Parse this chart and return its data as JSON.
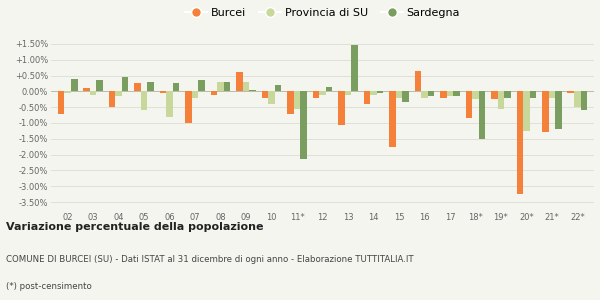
{
  "categories": [
    "02",
    "03",
    "04",
    "05",
    "06",
    "07",
    "08",
    "09",
    "10",
    "11*",
    "12",
    "13",
    "14",
    "15",
    "16",
    "17",
    "18*",
    "19*",
    "20*",
    "21*",
    "22*"
  ],
  "burcei": [
    -0.7,
    0.1,
    -0.5,
    0.25,
    -0.05,
    -1.0,
    -0.1,
    0.6,
    -0.2,
    -0.7,
    -0.2,
    -1.05,
    -0.4,
    -1.75,
    0.65,
    -0.2,
    -0.85,
    -0.25,
    -3.25,
    -1.3,
    -0.05
  ],
  "provincia_su": [
    -0.05,
    -0.1,
    -0.15,
    -0.6,
    -0.8,
    -0.2,
    0.3,
    0.3,
    -0.4,
    -0.55,
    -0.1,
    -0.1,
    -0.1,
    -0.2,
    -0.2,
    -0.15,
    -0.25,
    -0.55,
    -1.25,
    -0.2,
    -0.5
  ],
  "sardegna": [
    0.4,
    0.35,
    0.45,
    0.3,
    0.25,
    0.35,
    0.3,
    0.05,
    0.2,
    -2.15,
    0.15,
    1.45,
    -0.05,
    -0.35,
    -0.15,
    -0.15,
    -1.5,
    -0.2,
    -0.2,
    -1.2,
    -0.6
  ],
  "color_burcei": "#f4803a",
  "color_provincia": "#c8d89a",
  "color_sardegna": "#7a9e5f",
  "bg_color": "#f5f5f0",
  "grid_color": "#e0e0d8",
  "ylim_min": -3.75,
  "ylim_max": 1.75,
  "yticks": [
    -3.5,
    -3.0,
    -2.5,
    -2.0,
    -1.5,
    -1.0,
    -0.5,
    0.0,
    0.5,
    1.0,
    1.5
  ],
  "legend_labels": [
    "Burcei",
    "Provincia di SU",
    "Sardegna"
  ],
  "title_bold": "Variazione percentuale della popolazione",
  "subtitle1": "COMUNE DI BURCEI (SU) - Dati ISTAT al 31 dicembre di ogni anno - Elaborazione TUTTITALIA.IT",
  "subtitle2": "(*) post-censimento"
}
